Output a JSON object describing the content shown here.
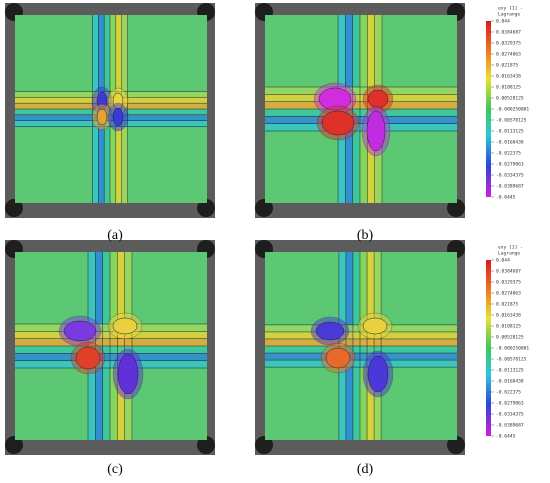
{
  "panels": [
    {
      "label": "(a)"
    },
    {
      "label": "(b)"
    },
    {
      "label": "(c)"
    },
    {
      "label": "(d)"
    }
  ],
  "colorbar": {
    "title": "exy [1] -",
    "subtitle": "Lagrange",
    "ticks": [
      "0.044",
      "0.0384687",
      "0.0329375",
      "0.0274063",
      "0.021875",
      "0.0163438",
      "0.0108125",
      "0.00528125",
      "-0.000250001",
      "-0.00578125",
      "-0.0113125",
      "-0.0168438",
      "-0.022375",
      "-0.0279063",
      "-0.0334375",
      "-0.0389687",
      "-0.0445"
    ]
  }
}
